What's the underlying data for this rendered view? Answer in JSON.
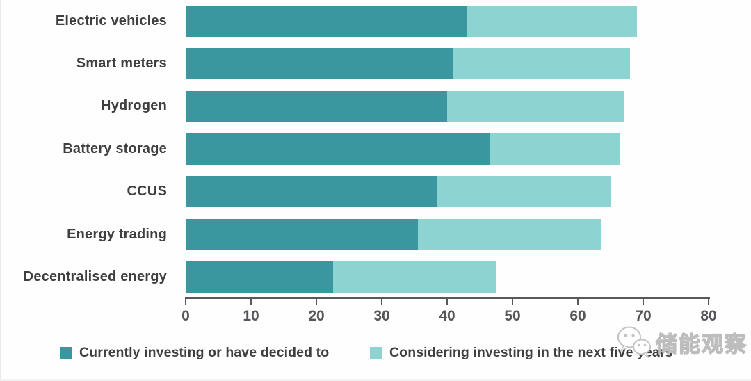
{
  "chart_data": {
    "type": "bar",
    "orientation": "horizontal",
    "stacked": true,
    "title": "",
    "xlabel": "",
    "ylabel": "",
    "categories": [
      "Electric vehicles",
      "Smart meters",
      "Hydrogen",
      "Battery storage",
      "CCUS",
      "Energy trading",
      "Decentralised energy"
    ],
    "series": [
      {
        "name": "Currently investing or have decided to",
        "color": "#3a97a0",
        "values": [
          43,
          41,
          40,
          46.5,
          38.5,
          35.5,
          22.5
        ]
      },
      {
        "name": "Considering investing in the next five years",
        "color": "#8dd3d1",
        "values": [
          26,
          27,
          27,
          20,
          26.5,
          28,
          25
        ]
      }
    ],
    "totals": [
      69,
      68,
      67,
      66.5,
      65,
      63.5,
      47.5
    ],
    "xlim": [
      0,
      80
    ],
    "x_ticks": [
      0,
      10,
      20,
      30,
      40,
      50,
      60,
      70,
      80
    ],
    "grid": false,
    "legend_position": "bottom",
    "axis_color": "#57585b",
    "label_color": "#3e3f41"
  },
  "watermark": {
    "icon": "wechat-logo",
    "text": "储能观察"
  }
}
